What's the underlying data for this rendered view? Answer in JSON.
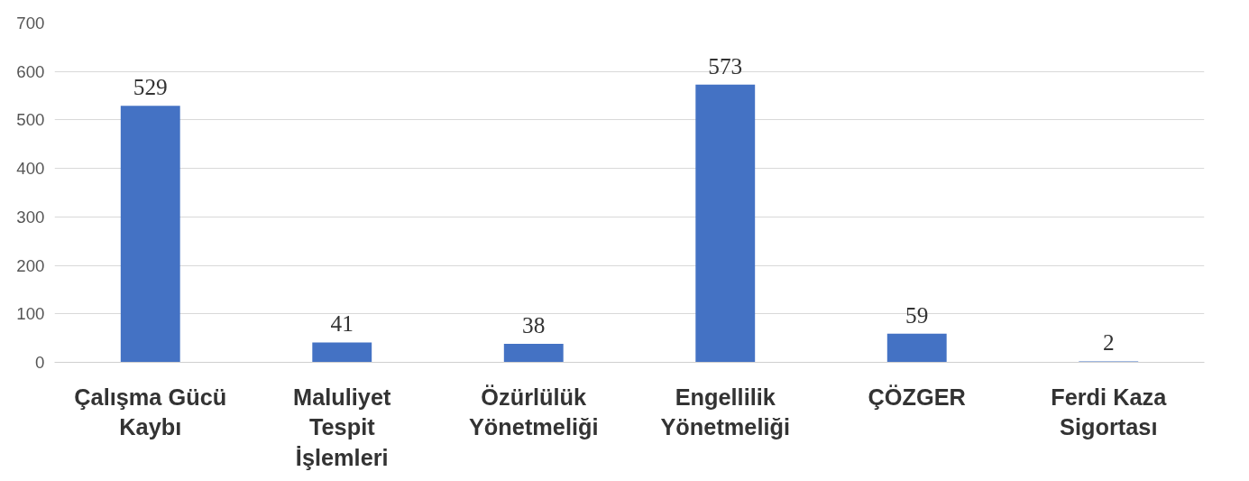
{
  "chart_data": {
    "type": "bar",
    "categories": [
      "Çalışma Gücü Kaybı",
      "Maluliyet Tespit İşlemleri",
      "Özürlülük Yönetmeliği",
      "Engellilik Yönetmeliği",
      "ÇÖZGER",
      "Ferdi Kaza Sigortası"
    ],
    "values": [
      529,
      41,
      38,
      573,
      59,
      2
    ],
    "color": "#4472c4",
    "ylim": [
      0,
      700
    ],
    "yticks": [
      0,
      100,
      200,
      300,
      400,
      500,
      600,
      700
    ],
    "grid": "y",
    "data_labels": true
  }
}
